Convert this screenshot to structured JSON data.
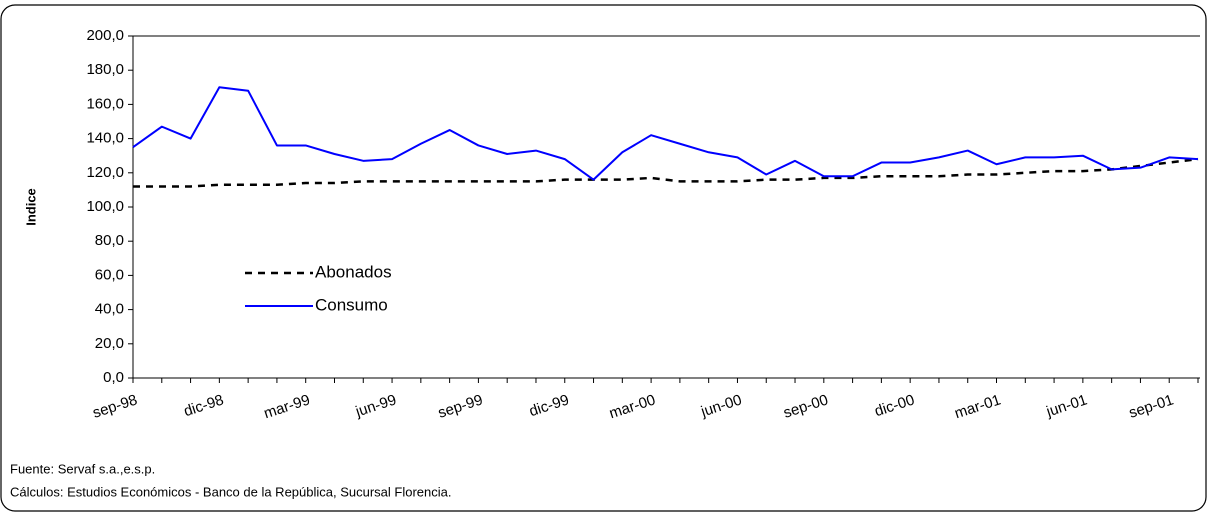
{
  "chart_data": {
    "type": "line",
    "y_label": "Indice",
    "categories": [
      "sep-98",
      null,
      null,
      "dic-98",
      null,
      null,
      "mar-99",
      null,
      null,
      "jun-99",
      null,
      null,
      "sep-99",
      null,
      null,
      "dic-99",
      null,
      null,
      "mar-00",
      null,
      null,
      "jun-00",
      null,
      null,
      "sep-00",
      null,
      null,
      "dic-00",
      null,
      null,
      "mar-01",
      null,
      null,
      "jun-01",
      null,
      null,
      "sep-01",
      null
    ],
    "series": [
      {
        "name": "Abonados",
        "color": "#000000",
        "style": "dashed",
        "values": [
          112,
          112,
          112,
          113,
          113,
          113,
          114,
          114,
          115,
          115,
          115,
          115,
          115,
          115,
          115,
          116,
          116,
          116,
          117,
          115,
          115,
          115,
          116,
          116,
          117,
          117,
          118,
          118,
          118,
          119,
          119,
          120,
          121,
          121,
          122,
          124,
          126,
          128
        ]
      },
      {
        "name": "Consumo",
        "color": "#0000ff",
        "style": "solid",
        "values": [
          135,
          147,
          140,
          170,
          168,
          136,
          136,
          131,
          127,
          128,
          137,
          145,
          136,
          131,
          133,
          128,
          116,
          132,
          142,
          137,
          132,
          129,
          119,
          127,
          118,
          118,
          126,
          126,
          129,
          133,
          125,
          129,
          129,
          130,
          122,
          123,
          129,
          128
        ]
      }
    ],
    "ylim": [
      0,
      200
    ],
    "yticks": [
      {
        "value": 0,
        "label": "0,0"
      },
      {
        "value": 20,
        "label": "20,0"
      },
      {
        "value": 40,
        "label": "40,0"
      },
      {
        "value": 60,
        "label": "60,0"
      },
      {
        "value": 80,
        "label": "80,0"
      },
      {
        "value": 100,
        "label": "100,0"
      },
      {
        "value": 120,
        "label": "120,0"
      },
      {
        "value": 140,
        "label": "140,0"
      },
      {
        "value": 160,
        "label": "160,0"
      },
      {
        "value": 180,
        "label": "180,0"
      },
      {
        "value": 200,
        "label": "200,0"
      }
    ],
    "grid": false,
    "legend": "left",
    "source": "Fuente: Servaf s.a.,e.s.p.",
    "calculations": "Cálculos:  Estudios Económicos - Banco de la República, Sucursal Florencia."
  }
}
